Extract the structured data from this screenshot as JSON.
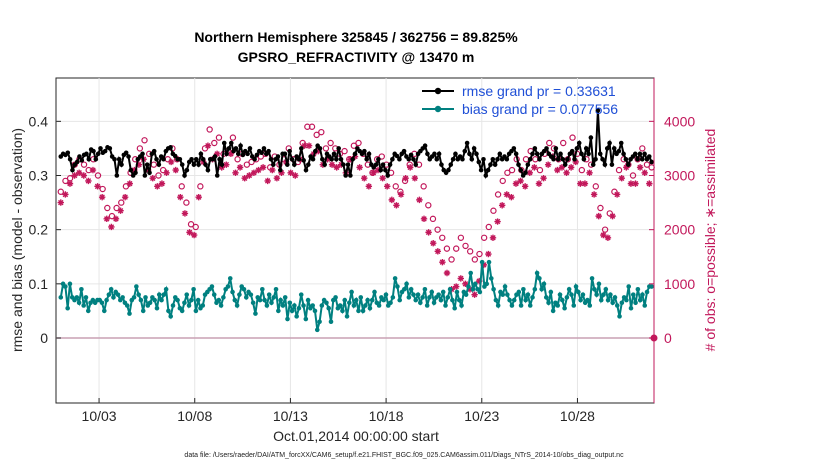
{
  "chart_data": {
    "type": "line",
    "title": "Northern Hemisphere 325845 / 362756 = 89.825%",
    "subtitle": "GPSRO_REFRACTIVITY @ 13470 m",
    "xlabel": "Oct.01,2014 00:00:00 start",
    "ylabel": "rmse and bias (model - observation)",
    "ylabel_right": "# of obs: o=possible; ∗=assimilated",
    "footer": "data file: /Users/raeder/DAI/ATM_forcXX/CAM6_setup/f.e21.FHIST_BGC.f09_025.CAM6assim.011/Diags_NTrS_2014-10/obs_diag_output.nc",
    "x_tick_labels": [
      "10/03",
      "10/08",
      "10/13",
      "10/18",
      "10/23",
      "10/28"
    ],
    "x_ticks_day": [
      3,
      8,
      13,
      18,
      23,
      28
    ],
    "xlim_day": [
      0.75,
      32.0
    ],
    "ylim_left": [
      -0.12,
      0.48
    ],
    "y_ticks_left": [
      0,
      0.1,
      0.2,
      0.3,
      0.4
    ],
    "y_tick_labels_left": [
      "0",
      "0.1",
      "0.2",
      "0.3",
      "0.4"
    ],
    "ylim_right": [
      -1200,
      4800
    ],
    "y_ticks_right": [
      0,
      1000,
      2000,
      3000,
      4000
    ],
    "y_tick_labels_right": [
      "0",
      "1000",
      "2000",
      "3000",
      "4000"
    ],
    "grid": true,
    "legend_position": "top-right",
    "colors": {
      "rmse": "#000000",
      "bias": "#008080",
      "obs": "#c2185b",
      "zero_line": "#c9a0b4"
    },
    "series": [
      {
        "name": "rmse grand pr = 0.33631",
        "axis": "left",
        "values": [
          0.335,
          0.34,
          0.338,
          0.342,
          0.33,
          0.31,
          0.32,
          0.325,
          0.335,
          0.328,
          0.338,
          0.34,
          0.33,
          0.348,
          0.345,
          0.33,
          0.34,
          0.35,
          0.342,
          0.345,
          0.352,
          0.35,
          0.335,
          0.33,
          0.3,
          0.33,
          0.32,
          0.338,
          0.342,
          0.335,
          0.31,
          0.3,
          0.305,
          0.33,
          0.335,
          0.34,
          0.3,
          0.32,
          0.305,
          0.34,
          0.345,
          0.33,
          0.32,
          0.335,
          0.33,
          0.345,
          0.35,
          0.352,
          0.34,
          0.336,
          0.33,
          0.33,
          0.32,
          0.3,
          0.31,
          0.325,
          0.33,
          0.32,
          0.33,
          0.32,
          0.34,
          0.33,
          0.32,
          0.31,
          0.33,
          0.33,
          0.335,
          0.3,
          0.33,
          0.32,
          0.36,
          0.34,
          0.35,
          0.36,
          0.345,
          0.35,
          0.34,
          0.355,
          0.338,
          0.345,
          0.34,
          0.35,
          0.335,
          0.33,
          0.338,
          0.345,
          0.342,
          0.35,
          0.34,
          0.345,
          0.33,
          0.32,
          0.33,
          0.335,
          0.31,
          0.34,
          0.34,
          0.32,
          0.345,
          0.33,
          0.32,
          0.335,
          0.33,
          0.35,
          0.328,
          0.31,
          0.32,
          0.335,
          0.33,
          0.345,
          0.355,
          0.35,
          0.33,
          0.32,
          0.34,
          0.335,
          0.33,
          0.34,
          0.33,
          0.35,
          0.33,
          0.32,
          0.3,
          0.32,
          0.3,
          0.33,
          0.34,
          0.35,
          0.345,
          0.34,
          0.345,
          0.33,
          0.34,
          0.32,
          0.315,
          0.32,
          0.33,
          0.31,
          0.32,
          0.31,
          0.3,
          0.32,
          0.33,
          0.34,
          0.336,
          0.33,
          0.34,
          0.345,
          0.335,
          0.33,
          0.338,
          0.33,
          0.32,
          0.34,
          0.345,
          0.35,
          0.355,
          0.34,
          0.33,
          0.335,
          0.34,
          0.33,
          0.34,
          0.32,
          0.31,
          0.305,
          0.31,
          0.32,
          0.33,
          0.34,
          0.33,
          0.335,
          0.33,
          0.345,
          0.36,
          0.34,
          0.33,
          0.35,
          0.34,
          0.325,
          0.31,
          0.33,
          0.3,
          0.31,
          0.32,
          0.33,
          0.32,
          0.33,
          0.34,
          0.33,
          0.335,
          0.33,
          0.34,
          0.345,
          0.35,
          0.34,
          0.32,
          0.31,
          0.3,
          0.305,
          0.32,
          0.33,
          0.34,
          0.35,
          0.34,
          0.33,
          0.34,
          0.345,
          0.35,
          0.34,
          0.335,
          0.33,
          0.35,
          0.33,
          0.34,
          0.33,
          0.32,
          0.33,
          0.34,
          0.345,
          0.33,
          0.35,
          0.36,
          0.34,
          0.33,
          0.35,
          0.34,
          0.37,
          0.32,
          0.33,
          0.42,
          0.34,
          0.33,
          0.32,
          0.35,
          0.36,
          0.32,
          0.35,
          0.34,
          0.345,
          0.36,
          0.34,
          0.33,
          0.32,
          0.33,
          0.335,
          0.34,
          0.33,
          0.34,
          0.33,
          0.34,
          0.33,
          0.335,
          0.325
        ]
      },
      {
        "name": "bias grand pr = 0.077556",
        "axis": "left",
        "values": [
          0.075,
          0.1,
          0.095,
          0.055,
          0.1,
          0.075,
          0.07,
          0.075,
          0.065,
          0.09,
          0.06,
          0.075,
          0.05,
          0.065,
          0.07,
          0.065,
          0.07,
          0.07,
          0.065,
          0.05,
          0.07,
          0.08,
          0.09,
          0.075,
          0.085,
          0.08,
          0.07,
          0.075,
          0.065,
          0.06,
          0.045,
          0.07,
          0.075,
          0.095,
          0.08,
          0.07,
          0.05,
          0.075,
          0.06,
          0.065,
          0.075,
          0.07,
          0.055,
          0.08,
          0.07,
          0.08,
          0.09,
          0.05,
          0.04,
          0.06,
          0.075,
          0.07,
          0.055,
          0.05,
          0.065,
          0.08,
          0.06,
          0.07,
          0.09,
          0.05,
          0.07,
          0.055,
          0.06,
          0.08,
          0.085,
          0.09,
          0.095,
          0.08,
          0.065,
          0.07,
          0.06,
          0.075,
          0.09,
          0.095,
          0.11,
          0.085,
          0.07,
          0.06,
          0.08,
          0.095,
          0.09,
          0.075,
          0.085,
          0.08,
          0.065,
          0.045,
          0.075,
          0.07,
          0.09,
          0.07,
          0.06,
          0.08,
          0.065,
          0.075,
          0.09,
          0.05,
          0.07,
          0.06,
          0.075,
          0.035,
          0.065,
          0.05,
          0.06,
          0.04,
          0.055,
          0.08,
          0.06,
          0.035,
          0.07,
          0.055,
          0.06,
          0.05,
          0.015,
          0.03,
          0.06,
          0.07,
          0.065,
          0.055,
          0.03,
          0.07,
          0.075,
          0.055,
          0.06,
          0.05,
          0.07,
          0.04,
          0.065,
          0.085,
          0.06,
          0.07,
          0.05,
          0.075,
          0.05,
          0.06,
          0.07,
          0.055,
          0.07,
          0.085,
          0.065,
          0.06,
          0.075,
          0.07,
          0.08,
          0.06,
          0.065,
          0.075,
          0.11,
          0.095,
          0.07,
          0.085,
          0.09,
          0.1,
          0.075,
          0.09,
          0.08,
          0.07,
          0.08,
          0.065,
          0.075,
          0.09,
          0.06,
          0.075,
          0.085,
          0.065,
          0.075,
          0.08,
          0.07,
          0.085,
          0.06,
          0.075,
          0.09,
          0.07,
          0.055,
          0.085,
          0.07,
          0.06,
          0.085,
          0.08,
          0.095,
          0.12,
          0.09,
          0.1,
          0.09,
          0.085,
          0.14,
          0.095,
          0.1,
          0.14,
          0.11,
          0.09,
          0.07,
          0.06,
          0.085,
          0.08,
          0.095,
          0.08,
          0.07,
          0.06,
          0.07,
          0.08,
          0.085,
          0.06,
          0.09,
          0.07,
          0.08,
          0.06,
          0.075,
          0.09,
          0.12,
          0.11,
          0.09,
          0.1,
          0.075,
          0.065,
          0.085,
          0.05,
          0.065,
          0.06,
          0.08,
          0.07,
          0.055,
          0.075,
          0.09,
          0.08,
          0.06,
          0.095,
          0.085,
          0.07,
          0.08,
          0.065,
          0.07,
          0.06,
          0.11,
          0.09,
          0.08,
          0.1,
          0.07,
          0.08,
          0.09,
          0.07,
          0.08,
          0.065,
          0.075,
          0.06,
          0.04,
          0.065,
          0.075,
          0.07,
          0.095,
          0.055,
          0.08,
          0.065,
          0.09,
          0.07,
          0.08,
          0.06,
          0.085,
          0.095,
          0.095
        ]
      },
      {
        "name": "possible obs count (o)",
        "axis": "right",
        "marker": "circle",
        "values": [
          2700,
          2800,
          2900,
          2850,
          2950,
          3100,
          3200,
          3150,
          3300,
          3350,
          3200,
          3050,
          3100,
          3250,
          3300,
          3150,
          3000,
          2900,
          2750,
          2600,
          2400,
          2200,
          2250,
          2300,
          2400,
          2450,
          2500,
          2600,
          2800,
          2950,
          3050,
          3200,
          3300,
          3400,
          3500,
          3600,
          3650,
          3500,
          3400,
          3300,
          3200,
          3100,
          3000,
          2950,
          3100,
          3200,
          3300,
          3400,
          3500,
          3600,
          3300,
          3000,
          2800,
          2700,
          2500,
          2300,
          2100,
          2000,
          2050,
          2300,
          2800,
          3100,
          3500,
          3800,
          3850,
          3750,
          3600,
          3800,
          3700,
          3500,
          3400,
          3300,
          3450,
          3600,
          3700,
          3400,
          3300,
          3500,
          3400,
          3300,
          3200,
          3350,
          3250,
          3150,
          3300,
          3200,
          3350,
          3500,
          3400,
          3250,
          3150,
          3300,
          3350,
          3400,
          3200,
          3100,
          3300,
          3400,
          3500,
          3600,
          3300,
          3100,
          3250,
          3400,
          3600,
          3700,
          3900,
          4000,
          3900,
          3800,
          3750,
          3700,
          3800,
          3600,
          3500,
          3400,
          3600,
          3700,
          3500,
          3300,
          3400,
          3500,
          3450,
          3350,
          3300,
          3450,
          3550,
          3500,
          3600,
          3450,
          3400,
          3300,
          3200,
          3100,
          3050,
          3150,
          3300,
          3400,
          3350,
          3200,
          3200,
          3100,
          3050,
          2950,
          2800,
          2750,
          2700,
          2650,
          2900,
          3000,
          3200,
          3300,
          3400,
          3300,
          3200,
          3000,
          2800,
          2600,
          2450,
          2300,
          2200,
          2100,
          2000,
          1950,
          1850,
          1750,
          1650,
          1550,
          1450,
          1500,
          1650,
          1750,
          1850,
          1800,
          1700,
          1650,
          1600,
          1550,
          1450,
          1400,
          1550,
          1700,
          1850,
          1950,
          2050,
          2200,
          2350,
          2500,
          2650,
          2800,
          2900,
          3000,
          3050,
          2950,
          3100,
          3200,
          3300,
          3250,
          3100,
          3150,
          3300,
          3400,
          3450,
          3500,
          3300,
          3200,
          3100,
          3300,
          3400,
          3550,
          3600,
          3700,
          3500,
          3450,
          3300,
          3500,
          3600,
          3400,
          3300,
          3500,
          3700,
          3600,
          3400,
          3200,
          3100,
          3200,
          3300,
          3400,
          3200,
          3000,
          2800,
          2600,
          2400,
          2200,
          2000,
          2100,
          2300,
          2500,
          2700,
          2900,
          3100,
          3200,
          3300,
          3400,
          3200,
          3100,
          3000,
          3100,
          3300,
          3400,
          3500,
          3300,
          3200,
          3100,
          3150
        ]
      },
      {
        "name": "assimilated obs count (∗)",
        "axis": "right",
        "marker": "star",
        "values": [
          2500,
          2550,
          2650,
          2750,
          2850,
          2950,
          3000,
          2950,
          3050,
          3100,
          3000,
          2850,
          2900,
          3050,
          3100,
          2950,
          2800,
          2700,
          2600,
          2450,
          2200,
          2000,
          2050,
          2100,
          2200,
          2300,
          2350,
          2450,
          2600,
          2750,
          2850,
          3000,
          3100,
          3150,
          3200,
          3250,
          3300,
          3200,
          3100,
          3050,
          2950,
          2850,
          2800,
          2750,
          2850,
          2950,
          3050,
          3150,
          3250,
          3300,
          3100,
          2800,
          2600,
          2500,
          2300,
          2100,
          1950,
          1850,
          1900,
          2100,
          2600,
          2900,
          3250,
          3500,
          3550,
          3450,
          3300,
          3500,
          3400,
          3250,
          3150,
          3050,
          3200,
          3300,
          3400,
          3150,
          3050,
          3250,
          3150,
          3050,
          2950,
          3100,
          3000,
          2900,
          3050,
          2950,
          3100,
          3250,
          3150,
          3000,
          2900,
          3050,
          3100,
          3150,
          2950,
          2850,
          3050,
          3150,
          3250,
          3300,
          3050,
          2900,
          3000,
          3150,
          3300,
          3400,
          3550,
          3600,
          3550,
          3450,
          3400,
          3350,
          3450,
          3300,
          3200,
          3100,
          3300,
          3400,
          3200,
          3050,
          3150,
          3250,
          3200,
          3100,
          3050,
          3200,
          3300,
          3250,
          3350,
          3200,
          3150,
          3050,
          2950,
          2850,
          2800,
          2900,
          3050,
          3150,
          3100,
          2950,
          2950,
          2850,
          2800,
          2700,
          2550,
          2500,
          2450,
          2400,
          2650,
          2750,
          2950,
          3050,
          3150,
          3050,
          2950,
          2750,
          2550,
          2350,
          2200,
          2050,
          1950,
          1850,
          1750,
          1700,
          1600,
          1500,
          1400,
          1300,
          1200,
          1000,
          900,
          850,
          950,
          1000,
          1100,
          1050,
          1000,
          950,
          900,
          850,
          800,
          900,
          1050,
          1200,
          1350,
          1450,
          1550,
          1700,
          1850,
          2000,
          2150,
          2300,
          2450,
          2550,
          2650,
          2700,
          2600,
          2750,
          2850,
          2950,
          2900,
          2750,
          2800,
          2950,
          3050,
          3100,
          3150,
          2950,
          2850,
          2750,
          2950,
          3050,
          3200,
          3250,
          3350,
          3150,
          3100,
          2950,
          3150,
          3250,
          3050,
          2950,
          3150,
          3350,
          3250,
          3050,
          2850,
          2750,
          2850,
          2950,
          3050,
          2850,
          2650,
          2450,
          2250,
          2050,
          1900,
          1750,
          1850,
          2050,
          2250,
          2450,
          2650,
          2850,
          2950,
          3050,
          3150,
          2950,
          2850,
          2750,
          2850,
          3050,
          3150,
          3250,
          3050,
          2950,
          2850,
          2900
        ]
      }
    ]
  }
}
